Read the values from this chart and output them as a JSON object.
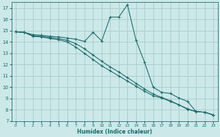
{
  "xlabel": "Humidex (Indice chaleur)",
  "background_color": "#cce8e8",
  "grid_color": "#aacfcf",
  "line_color": "#1a6b6b",
  "xlim": [
    -0.5,
    23.5
  ],
  "ylim": [
    7,
    17.5
  ],
  "yticks": [
    7,
    8,
    9,
    10,
    11,
    12,
    13,
    14,
    15,
    16,
    17
  ],
  "xticks": [
    0,
    1,
    2,
    3,
    4,
    5,
    6,
    7,
    8,
    9,
    10,
    11,
    12,
    13,
    14,
    15,
    16,
    17,
    18,
    19,
    20,
    21,
    22,
    23
  ],
  "series1_x": [
    0,
    1,
    2,
    3,
    4,
    5,
    6,
    7,
    8,
    9,
    10,
    11,
    12,
    13,
    14,
    15,
    16,
    17,
    18,
    19,
    20,
    21,
    22,
    23
  ],
  "series1_y": [
    14.9,
    14.85,
    14.65,
    14.6,
    14.5,
    14.45,
    14.35,
    14.25,
    14.05,
    14.85,
    14.1,
    16.2,
    16.2,
    17.3,
    14.15,
    12.2,
    10.0,
    9.55,
    9.45,
    9.05,
    8.75,
    7.85,
    7.8,
    7.55
  ],
  "series2_x": [
    0,
    1,
    2,
    3,
    4,
    5,
    6,
    7,
    8,
    9,
    10,
    11,
    12,
    13,
    14,
    15,
    16,
    17,
    18,
    19,
    20,
    21,
    22,
    23
  ],
  "series2_y": [
    14.9,
    14.85,
    14.5,
    14.45,
    14.3,
    14.2,
    14.0,
    13.55,
    13.0,
    12.45,
    11.9,
    11.45,
    11.0,
    10.55,
    10.1,
    9.65,
    9.25,
    9.05,
    8.75,
    8.45,
    8.05,
    7.85,
    7.8,
    7.55
  ],
  "series3_x": [
    0,
    1,
    2,
    3,
    4,
    5,
    6,
    7,
    8,
    9,
    10,
    11,
    12,
    13,
    14,
    15,
    16,
    17,
    18,
    19,
    20,
    21,
    22,
    23
  ],
  "series3_y": [
    14.9,
    14.85,
    14.55,
    14.5,
    14.4,
    14.3,
    14.15,
    13.85,
    13.4,
    12.85,
    12.3,
    11.8,
    11.35,
    10.85,
    10.35,
    9.85,
    9.4,
    9.1,
    8.8,
    8.45,
    8.1,
    7.85,
    7.8,
    7.55
  ]
}
